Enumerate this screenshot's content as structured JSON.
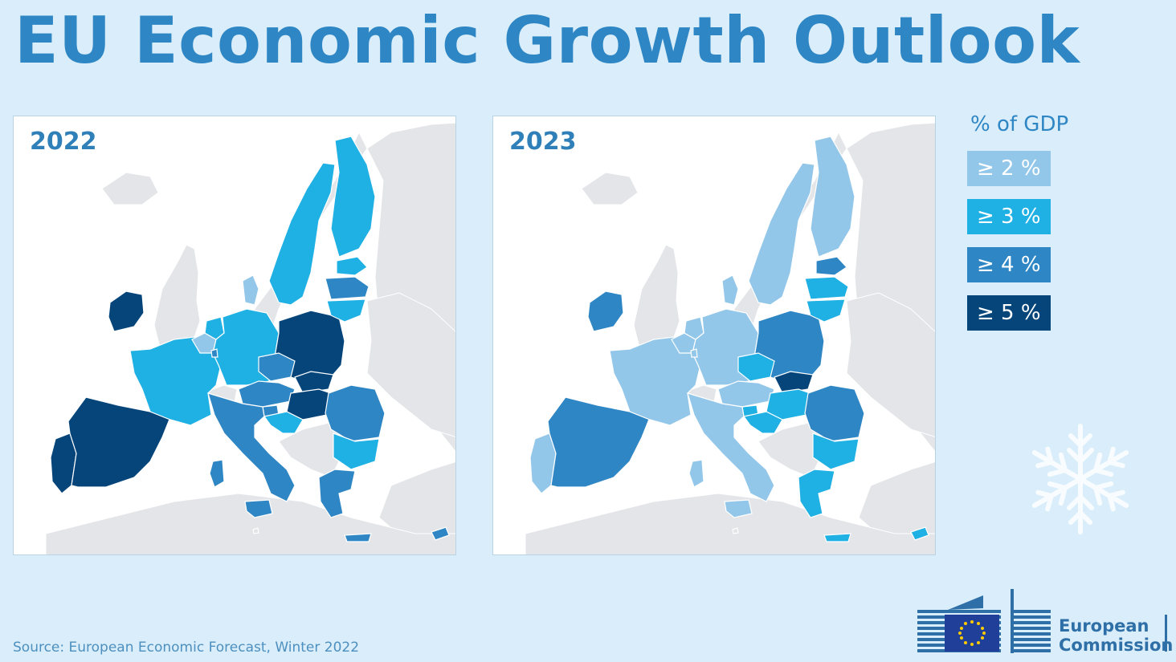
{
  "title": "EU Economic Growth Outlook",
  "maps": [
    {
      "year": "2022"
    },
    {
      "year": "2023"
    }
  ],
  "legend": {
    "title": "% of GDP",
    "items": [
      {
        "label": "≥ 2 %",
        "color": "#93c7ea"
      },
      {
        "label": "≥ 3 %",
        "color": "#1fb0e4"
      },
      {
        "label": "≥ 4 %",
        "color": "#2f86c4"
      },
      {
        "label": "≥ 5 %",
        "color": "#06457a"
      }
    ]
  },
  "source": "Source: European Economic Forecast, Winter 2022",
  "logo": {
    "line1": "European",
    "line2": "Commission"
  },
  "colors": {
    "background": "#d9eefa",
    "non_eu": "#e3e5e8",
    "border": "#ffffff",
    "accent": "#2f86c4"
  }
}
